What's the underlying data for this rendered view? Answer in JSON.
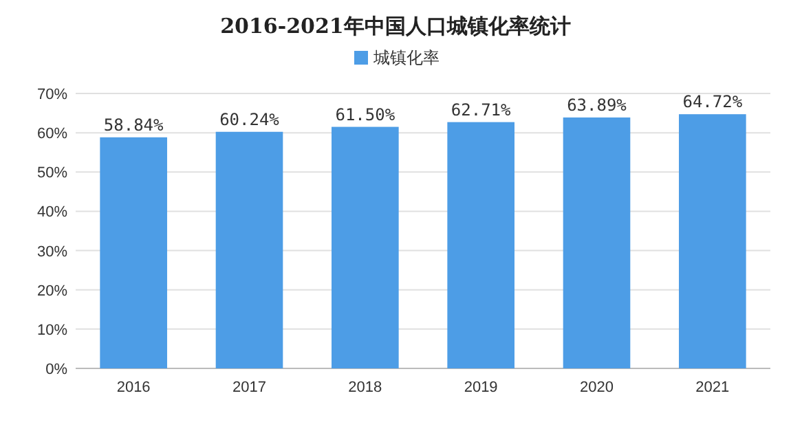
{
  "chart_data": {
    "type": "bar",
    "title": "2016-2021年中国人口城镇化率统计",
    "categories": [
      "2016",
      "2017",
      "2018",
      "2019",
      "2020",
      "2021"
    ],
    "series": [
      {
        "name": "城镇化率",
        "color": "#4d9de6",
        "values": [
          58.84,
          60.24,
          61.5,
          62.71,
          63.89,
          64.72
        ]
      }
    ],
    "value_labels": [
      "58.84%",
      "60.24%",
      "61.50%",
      "62.71%",
      "63.89%",
      "64.72%"
    ],
    "ylim": [
      0,
      70
    ],
    "yticks": [
      {
        "value": 0,
        "label": "0%"
      },
      {
        "value": 10,
        "label": "10%"
      },
      {
        "value": 20,
        "label": "20%"
      },
      {
        "value": 30,
        "label": "30%"
      },
      {
        "value": 40,
        "label": "40%"
      },
      {
        "value": 50,
        "label": "50%"
      },
      {
        "value": 60,
        "label": "60%"
      },
      {
        "value": 70,
        "label": "70%"
      }
    ],
    "grid": "y",
    "legend": "top"
  }
}
